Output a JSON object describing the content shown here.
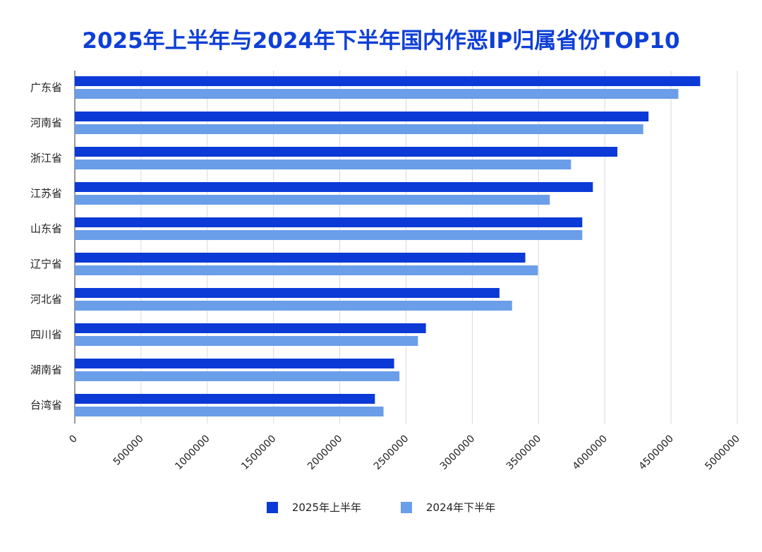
{
  "chart_data": {
    "type": "bar",
    "orientation": "horizontal",
    "title": "2025年上半年与2024年下半年国内作恶IP归属省份TOP10",
    "categories": [
      "广东省",
      "河南省",
      "浙江省",
      "江苏省",
      "山东省",
      "辽宁省",
      "河北省",
      "四川省",
      "湖南省",
      "台湾省"
    ],
    "series": [
      {
        "name": "2025年上半年",
        "color": "#0c3ad6",
        "values": [
          4720000,
          4330000,
          4095000,
          3910000,
          3830000,
          3400000,
          3205000,
          2650000,
          2410000,
          2265000
        ]
      },
      {
        "name": "2024年下半年",
        "color": "#6a9ee8",
        "values": [
          4555000,
          4290000,
          3745000,
          3585000,
          3830000,
          3495000,
          3300000,
          2590000,
          2450000,
          2330000
        ]
      }
    ],
    "xlim": [
      0,
      5000000
    ],
    "x_ticks": [
      "0",
      "500000",
      "1000000",
      "1500000",
      "2000000",
      "2500000",
      "3000000",
      "3500000",
      "4000000",
      "4500000",
      "5000000"
    ],
    "grid": true,
    "legend_position": "bottom"
  }
}
